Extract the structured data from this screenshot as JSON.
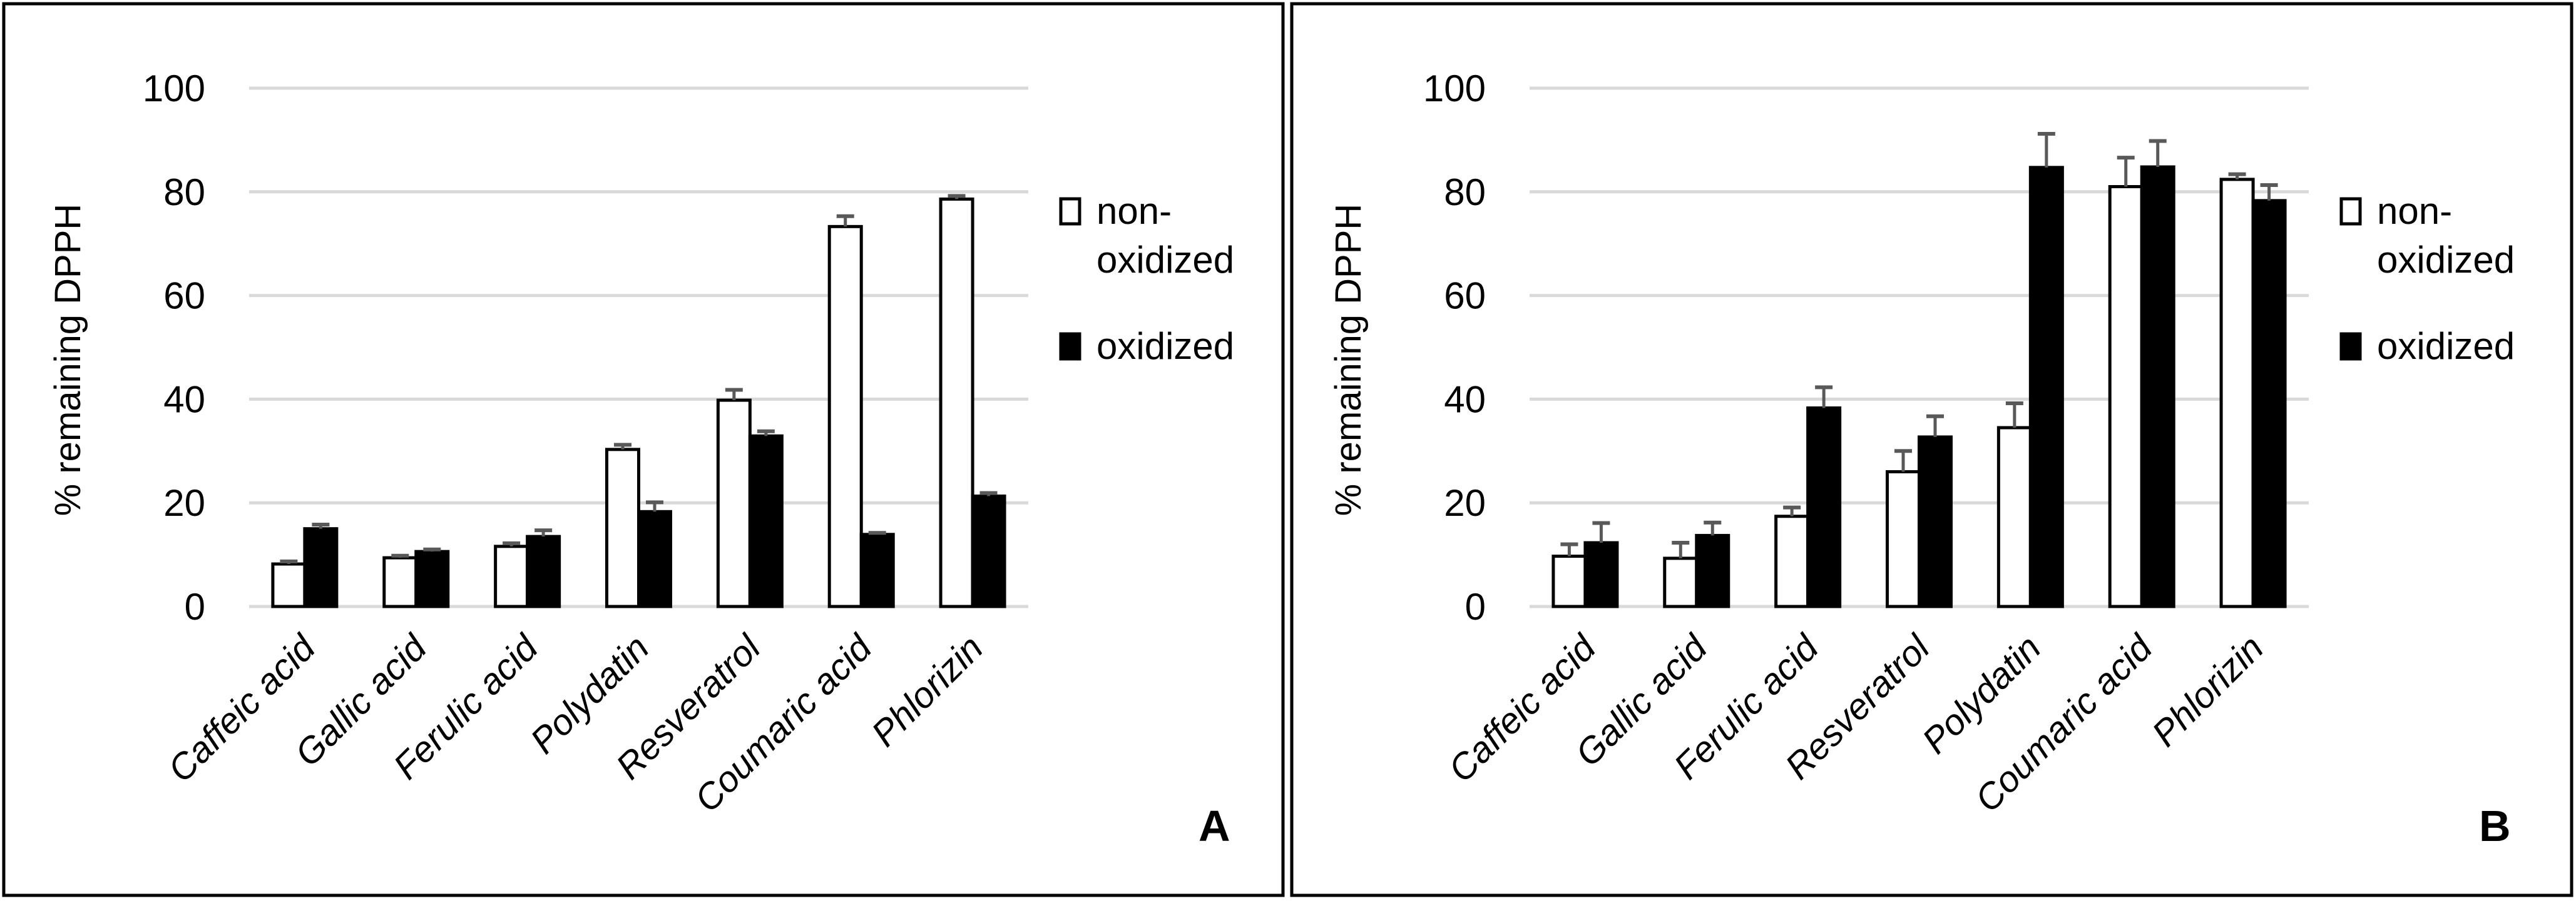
{
  "chart_data": [
    {
      "type": "bar",
      "panel_label": "A",
      "ylabel": "% remaining DPPH",
      "xlabel": "",
      "ylim": [
        0,
        100
      ],
      "yticks": [
        0,
        20,
        40,
        60,
        80,
        100
      ],
      "grid": true,
      "legend_position": "right",
      "categories": [
        "Caffeic acid",
        "Gallic acid",
        "Ferulic acid",
        "Polydatin",
        "Resveratrol",
        "Coumaric acid",
        "Phlorizin"
      ],
      "series": [
        {
          "name": "non-oxidized",
          "legend_lines": [
            "non-",
            "oxidized"
          ],
          "fill": "#ffffff",
          "values": [
            8.2,
            9.4,
            11.6,
            30.3,
            39.8,
            73.3,
            78.6
          ],
          "errors": [
            0.5,
            0.4,
            0.6,
            0.9,
            2.0,
            2.0,
            0.6
          ]
        },
        {
          "name": "oxidized",
          "legend_lines": [
            "oxidized"
          ],
          "fill": "#000000",
          "values": [
            15.0,
            10.6,
            13.5,
            18.3,
            32.9,
            13.9,
            21.3
          ],
          "errors": [
            0.8,
            0.4,
            1.2,
            1.8,
            0.9,
            0.3,
            0.6
          ]
        }
      ]
    },
    {
      "type": "bar",
      "panel_label": "B",
      "ylabel": "% remaining DPPH",
      "xlabel": "",
      "ylim": [
        0,
        100
      ],
      "yticks": [
        0,
        20,
        40,
        60,
        80,
        100
      ],
      "grid": true,
      "legend_position": "right",
      "categories": [
        "Caffeic acid",
        "Gallic acid",
        "Ferulic acid",
        "Resveratrol",
        "Polydatin",
        "Coumaric acid",
        "Phlorizin"
      ],
      "series": [
        {
          "name": "non-oxidized",
          "legend_lines": [
            "non-",
            "oxidized"
          ],
          "fill": "#ffffff",
          "values": [
            9.7,
            9.3,
            17.4,
            26.0,
            34.5,
            81.0,
            82.4
          ],
          "errors": [
            2.3,
            3.0,
            1.7,
            4.0,
            4.7,
            5.6,
            1.0
          ]
        },
        {
          "name": "oxidized",
          "legend_lines": [
            "oxidized"
          ],
          "fill": "#000000",
          "values": [
            12.3,
            13.7,
            38.3,
            32.7,
            84.7,
            84.8,
            78.3
          ],
          "errors": [
            3.8,
            2.5,
            4.0,
            4.0,
            6.5,
            5.0,
            3.0
          ]
        }
      ]
    }
  ],
  "colors": {
    "gridline": "#d9d9d9",
    "error_bar": "#595959",
    "frame": "#000000"
  }
}
